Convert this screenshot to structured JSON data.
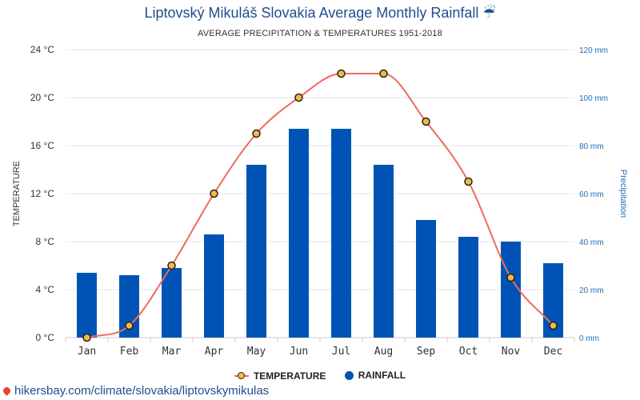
{
  "header": {
    "title": "Liptovský Mikuláš Slovakia Average Monthly Rainfall ☔",
    "subtitle": "AVERAGE PRECIPITATION & TEMPERATURES 1951-2018"
  },
  "legend": {
    "temperature": "TEMPERATURE",
    "rainfall": "RAINFALL"
  },
  "footer": {
    "url": "hikersbay.com/climate/slovakia/liptovskymikulas"
  },
  "colors": {
    "bar": "#0053b5",
    "line": "#f06a5e",
    "point_fill": "#f4b942",
    "point_stroke": "#222222",
    "right_axis": "#1f6fb5"
  },
  "chart_data": {
    "type": "bar",
    "categories": [
      "Jan",
      "Feb",
      "Mar",
      "Apr",
      "May",
      "Jun",
      "Jul",
      "Aug",
      "Sep",
      "Oct",
      "Nov",
      "Dec"
    ],
    "series": [
      {
        "name": "TEMPERATURE",
        "type": "line",
        "axis": "left",
        "values": [
          0,
          1,
          6,
          12,
          17,
          20,
          22,
          22,
          18,
          13,
          5,
          1
        ]
      },
      {
        "name": "RAINFALL",
        "type": "bar",
        "axis": "right",
        "values": [
          27,
          26,
          29,
          43,
          72,
          87,
          87,
          72,
          49,
          42,
          40,
          31
        ]
      }
    ],
    "ylabel": "TEMPERATURE",
    "y2label": "Precipitation",
    "ylim": [
      0,
      24
    ],
    "y2lim": [
      0,
      120
    ],
    "yticks": [
      "0 °C",
      "4 °C",
      "8 °C",
      "12 °C",
      "16 °C",
      "20 °C",
      "24 °C"
    ],
    "y2ticks": [
      "0 mm",
      "20 mm",
      "40 mm",
      "60 mm",
      "80 mm",
      "100 mm",
      "120 mm"
    ],
    "grid": true,
    "legend_position": "bottom"
  }
}
